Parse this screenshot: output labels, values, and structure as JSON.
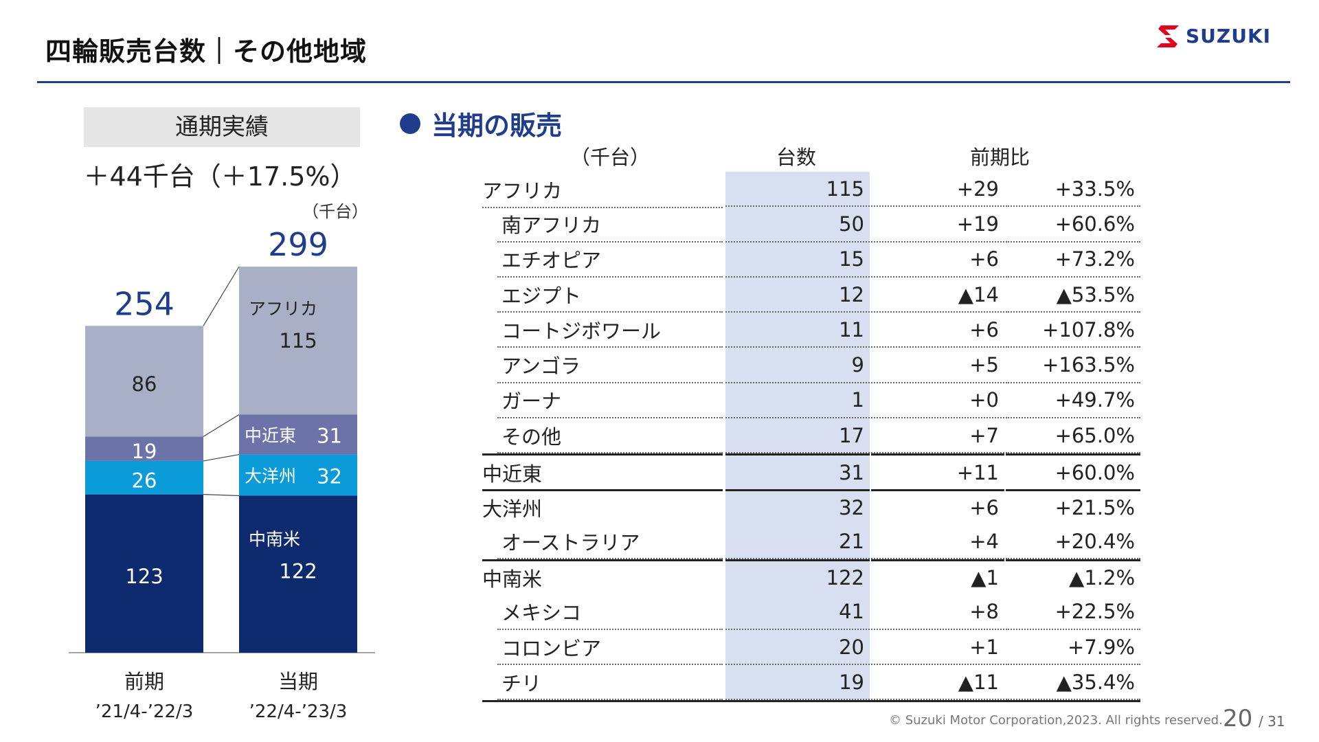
{
  "header": {
    "title": "四輪販売台数｜その他地域",
    "logo_text": "SUZUKI",
    "brand_color": "#1f3d8c"
  },
  "summary": {
    "label": "通期実績",
    "change": "＋44千台（＋17.5%）",
    "unit": "（千台）"
  },
  "section": {
    "heading": "当期の販売"
  },
  "chart_data": {
    "type": "bar",
    "stacked": true,
    "unit": "（千台）",
    "categories": [
      "前期",
      "当期"
    ],
    "periods": [
      "’21/4-’22/3",
      "’22/4-’23/3"
    ],
    "totals": [
      254,
      299
    ],
    "series": [
      {
        "name": "中南米",
        "values": [
          123,
          122
        ],
        "color": "#0e2a6e",
        "text_color": "#ffffff"
      },
      {
        "name": "大洋州",
        "values": [
          26,
          32
        ],
        "color": "#0a9bd8",
        "text_color": "#ffffff"
      },
      {
        "name": "中近東",
        "values": [
          19,
          31
        ],
        "color": "#6b73a8",
        "text_color": "#ffffff"
      },
      {
        "name": "アフリカ",
        "values": [
          86,
          115
        ],
        "color": "#a9b0c6",
        "text_color": "#222222"
      }
    ],
    "ylim": [
      0,
      299
    ],
    "total_color": "#1f3d8c"
  },
  "table": {
    "unit": "（千台）",
    "col_units": "台数",
    "col_change": "前期比",
    "rows": [
      {
        "name": "アフリカ",
        "level": "top",
        "units": "115",
        "diff": "+29",
        "pct": "+33.5%"
      },
      {
        "name": "南アフリカ",
        "level": "sub",
        "units": "50",
        "diff": "+19",
        "pct": "+60.6%"
      },
      {
        "name": "エチオピア",
        "level": "sub",
        "units": "15",
        "diff": "+6",
        "pct": "+73.2%"
      },
      {
        "name": "エジプト",
        "level": "sub",
        "units": "12",
        "diff": "▲14",
        "pct": "▲53.5%"
      },
      {
        "name": "コートジボワール",
        "level": "sub",
        "units": "11",
        "diff": "+6",
        "pct": "+107.8%"
      },
      {
        "name": "アンゴラ",
        "level": "sub",
        "units": "9",
        "diff": "+5",
        "pct": "+163.5%"
      },
      {
        "name": "ガーナ",
        "level": "sub",
        "units": "1",
        "diff": "+0",
        "pct": "+49.7%"
      },
      {
        "name": "その他",
        "level": "sub",
        "units": "17",
        "diff": "+7",
        "pct": "+65.0%"
      },
      {
        "name": "中近東",
        "level": "region",
        "units": "31",
        "diff": "+11",
        "pct": "+60.0%"
      },
      {
        "name": "大洋州",
        "level": "region",
        "units": "32",
        "diff": "+6",
        "pct": "+21.5%"
      },
      {
        "name": "オーストラリア",
        "level": "sub",
        "units": "21",
        "diff": "+4",
        "pct": "+20.4%"
      },
      {
        "name": "中南米",
        "level": "region",
        "units": "122",
        "diff": "▲1",
        "pct": "▲1.2%"
      },
      {
        "name": "メキシコ",
        "level": "sub",
        "units": "41",
        "diff": "+8",
        "pct": "+22.5%"
      },
      {
        "name": "コロンビア",
        "level": "sub",
        "units": "20",
        "diff": "+1",
        "pct": "+7.9%"
      },
      {
        "name": "チリ",
        "level": "sub",
        "units": "19",
        "diff": "▲11",
        "pct": "▲35.4%"
      }
    ]
  },
  "footer": {
    "copyright": "© Suzuki Motor Corporation,2023. All rights reserved.",
    "page": "20",
    "total": "/ 31"
  }
}
